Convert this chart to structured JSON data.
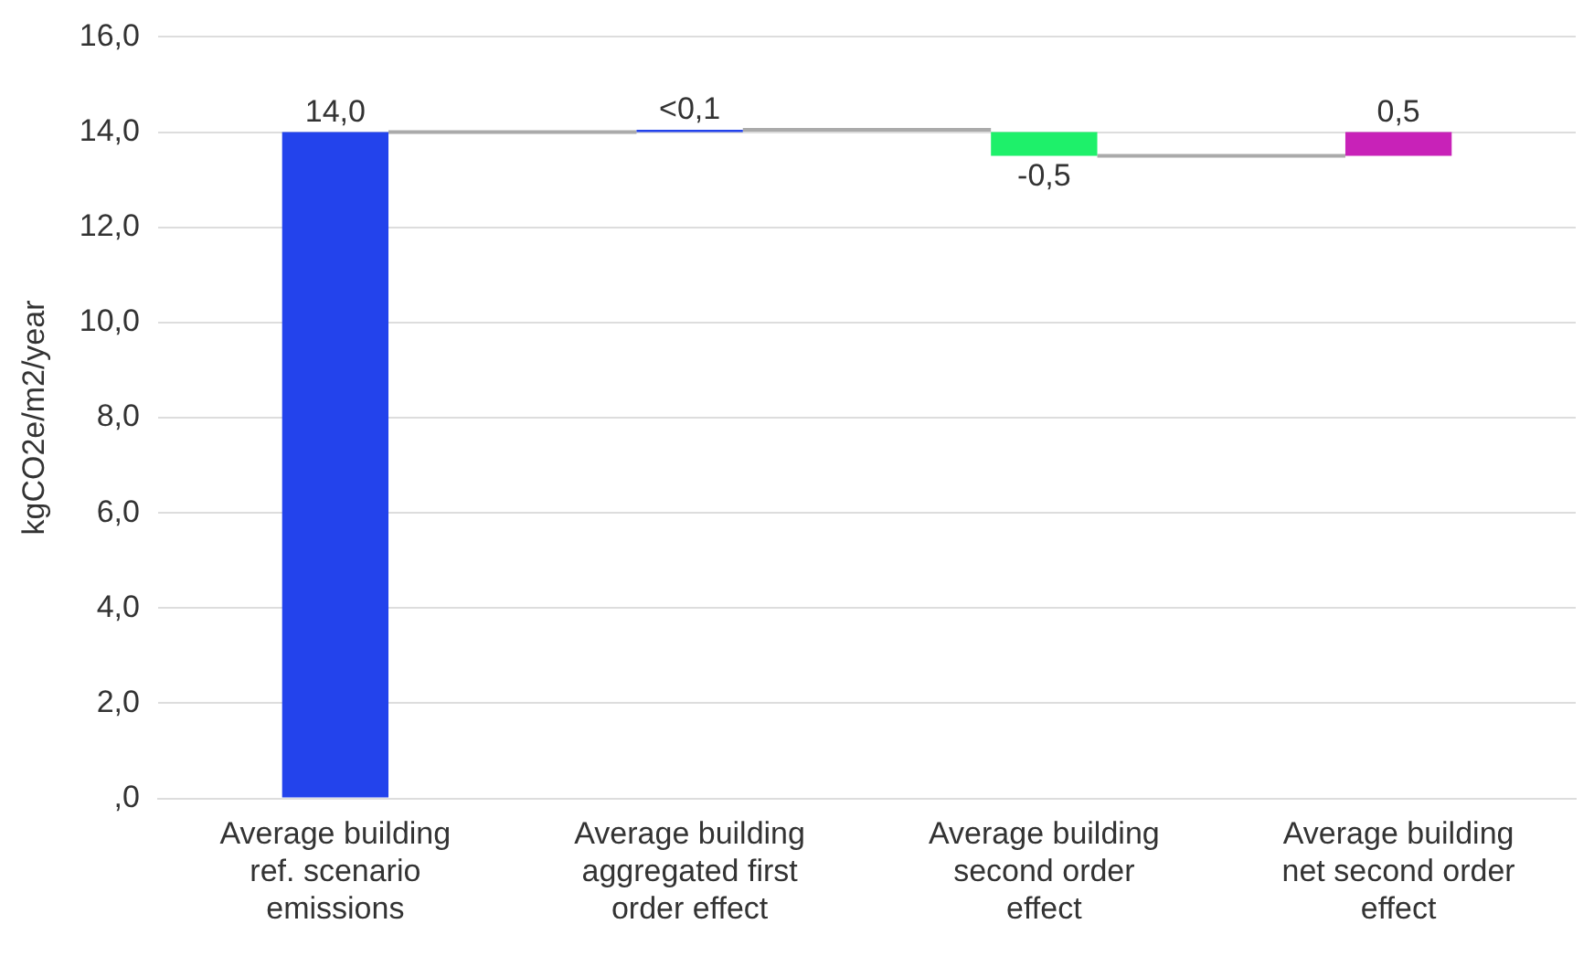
{
  "chart_data": {
    "type": "bar",
    "ylabel": "kgCO2e/m2/year",
    "categories": [
      "Average building ref. scenario emissions",
      "Average building aggregated first order effect",
      "Average building second order effect",
      "Average building net second order effect"
    ],
    "values": [
      14.0,
      0.05,
      -0.5,
      0.5
    ],
    "base": [
      0,
      14.0,
      14.0,
      13.5
    ],
    "colors": [
      "#2343ec",
      "#2343ec",
      "#1ef06a",
      "#c822b8"
    ],
    "value_labels": [
      "14,0",
      "<0,1",
      "-0,5",
      "0,5"
    ],
    "ylim": [
      0,
      16
    ],
    "yticks": [
      {
        "value": 0,
        "label": ",0"
      },
      {
        "value": 2,
        "label": "2,0"
      },
      {
        "value": 4,
        "label": "4,0"
      },
      {
        "value": 6,
        "label": "6,0"
      },
      {
        "value": 8,
        "label": "8,0"
      },
      {
        "value": 10,
        "label": "10,0"
      },
      {
        "value": 12,
        "label": "12,0"
      },
      {
        "value": 14,
        "label": "14,0"
      },
      {
        "value": 16,
        "label": "16,0"
      }
    ],
    "grid": "y"
  }
}
